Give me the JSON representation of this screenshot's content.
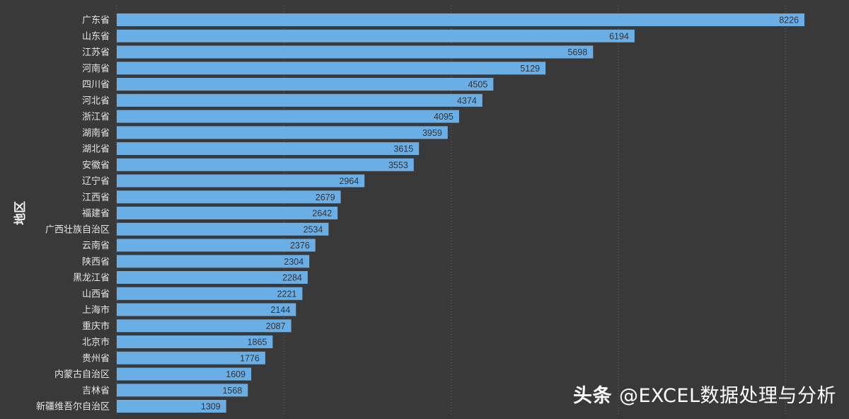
{
  "watermark": {
    "brand": "头条",
    "handle": "@EXCEL数据处理与分析"
  },
  "chart_data": {
    "type": "bar",
    "orientation": "horizontal",
    "title": "",
    "xlabel": "",
    "ylabel": "地区",
    "grid": true,
    "xlim": [
      0,
      8900
    ],
    "gridlines": [
      0,
      2000,
      4000,
      6000,
      8000
    ],
    "colors": {
      "background": "#393939",
      "bar": "#6aaee6",
      "category_text": "#e6e6e6",
      "value_text": "#333333",
      "grid": "#6a6a6a"
    },
    "categories": [
      "广东省",
      "山东省",
      "江苏省",
      "河南省",
      "四川省",
      "河北省",
      "浙江省",
      "湖南省",
      "湖北省",
      "安徽省",
      "辽宁省",
      "江西省",
      "福建省",
      "广西壮族自治区",
      "云南省",
      "陕西省",
      "黑龙江省",
      "山西省",
      "上海市",
      "重庆市",
      "北京市",
      "贵州省",
      "内蒙古自治区",
      "吉林省",
      "新疆维吾尔自治区"
    ],
    "values": [
      8226,
      6194,
      5698,
      5129,
      4505,
      4374,
      4095,
      3959,
      3615,
      3553,
      2964,
      2679,
      2642,
      2534,
      2376,
      2304,
      2284,
      2221,
      2144,
      2087,
      1865,
      1776,
      1609,
      1568,
      1309
    ]
  }
}
